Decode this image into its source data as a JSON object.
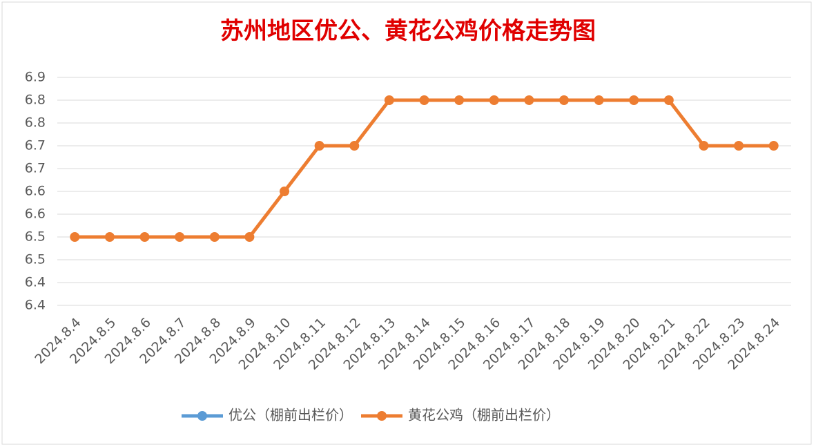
{
  "chart_data": {
    "type": "line",
    "title": "苏州地区优公、黄花公鸡价格走势图",
    "categories": [
      "2024.8.4",
      "2024.8.5",
      "2024.8.6",
      "2024.8.7",
      "2024.8.8",
      "2024.8.9",
      "2024.8.10",
      "2024.8.11",
      "2024.8.12",
      "2024.8.13",
      "2024.8.14",
      "2024.8.15",
      "2024.8.16",
      "2024.8.17",
      "2024.8.18",
      "2024.8.19",
      "2024.8.20",
      "2024.8.21",
      "2024.8.22",
      "2024.8.23",
      "2024.8.24"
    ],
    "series": [
      {
        "name": "优公（棚前出栏价）",
        "color": "#5b9bd5",
        "values": [
          null,
          null,
          null,
          null,
          null,
          null,
          null,
          null,
          null,
          null,
          null,
          null,
          null,
          null,
          null,
          null,
          null,
          null,
          null,
          null,
          null
        ]
      },
      {
        "name": "黄花公鸡（棚前出栏价）",
        "color": "#ed7d31",
        "values": [
          6.55,
          6.55,
          6.55,
          6.55,
          6.55,
          6.55,
          6.65,
          6.75,
          6.75,
          6.85,
          6.85,
          6.85,
          6.85,
          6.85,
          6.85,
          6.85,
          6.85,
          6.85,
          6.75,
          6.75,
          6.75
        ]
      }
    ],
    "ylim": [
      6.4,
      6.9
    ],
    "yticks": [
      {
        "value": 6.4,
        "label": "6.4"
      },
      {
        "value": 6.45,
        "label": "6.4"
      },
      {
        "value": 6.5,
        "label": "6.5"
      },
      {
        "value": 6.55,
        "label": "6.5"
      },
      {
        "value": 6.6,
        "label": "6.6"
      },
      {
        "value": 6.65,
        "label": "6.6"
      },
      {
        "value": 6.7,
        "label": "6.7"
      },
      {
        "value": 6.75,
        "label": "6.7"
      },
      {
        "value": 6.8,
        "label": "6.8"
      },
      {
        "value": 6.85,
        "label": "6.8"
      },
      {
        "value": 6.9,
        "label": "6.9"
      }
    ],
    "grid": true,
    "legend": "bottom"
  }
}
